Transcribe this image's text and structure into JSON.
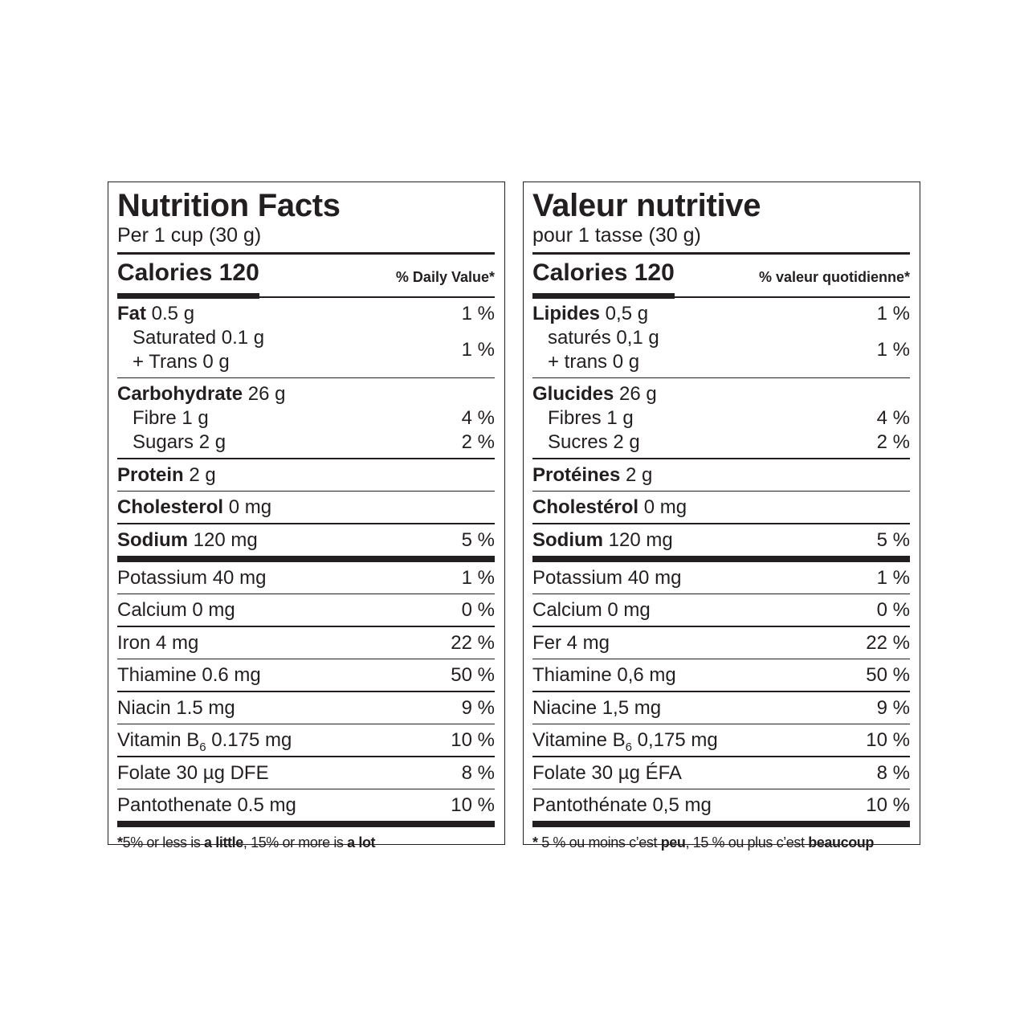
{
  "labels": [
    {
      "lang": "en",
      "title": "Nutrition Facts",
      "serving": "Per 1 cup (30 g)",
      "calories": "Calories 120",
      "dv_header": "% Daily Value*",
      "sections": [
        {
          "items": [
            {
              "name": "Fat",
              "amount": " 0.5 g",
              "dv": "1 %"
            },
            {
              "indent": true,
              "lines": [
                "Saturated 0.1 g",
                "+ Trans 0 g"
              ],
              "dv": "1 %"
            }
          ]
        },
        {
          "items": [
            {
              "name": "Carbohydrate",
              "amount": " 26 g",
              "dv": ""
            },
            {
              "indent": true,
              "plain": "Fibre 1 g",
              "dv": "4 %"
            },
            {
              "indent": true,
              "plain": "Sugars 2 g",
              "dv": "2 %"
            }
          ]
        },
        {
          "items": [
            {
              "name": "Protein",
              "amount": " 2 g",
              "dv": ""
            }
          ]
        },
        {
          "items": [
            {
              "name": "Cholesterol",
              "amount": " 0 mg",
              "dv": ""
            }
          ]
        },
        {
          "items": [
            {
              "name": "Sodium",
              "amount": " 120 mg",
              "dv": "5 %"
            }
          ],
          "after": "thick"
        },
        {
          "items": [
            {
              "plain": "Potassium 40 mg",
              "dv": "1 %"
            }
          ]
        },
        {
          "items": [
            {
              "plain": "Calcium 0 mg",
              "dv": "0 %"
            }
          ]
        },
        {
          "items": [
            {
              "plain": "Iron 4 mg",
              "dv": "22 %"
            }
          ]
        },
        {
          "items": [
            {
              "plain": "Thiamine 0.6 mg",
              "dv": "50 %"
            }
          ]
        },
        {
          "items": [
            {
              "plain": "Niacin 1.5 mg",
              "dv": "9 %"
            }
          ]
        },
        {
          "items": [
            {
              "plain": "Vitamin B",
              "sub": "6",
              "rest": " 0.175 mg",
              "dv": "10 %"
            }
          ]
        },
        {
          "items": [
            {
              "plain": "Folate 30 µg DFE",
              "dv": "8 %"
            }
          ]
        },
        {
          "items": [
            {
              "plain": "Pantothenate 0.5 mg",
              "dv": "10 %"
            }
          ],
          "after": "thick"
        }
      ],
      "footnote": [
        {
          "t": "*",
          "b": true
        },
        {
          "t": "5% or less is ",
          "b": false
        },
        {
          "t": "a little",
          "b": true
        },
        {
          "t": ", 15% or more is ",
          "b": false
        },
        {
          "t": "a lot",
          "b": true
        }
      ]
    },
    {
      "lang": "fr",
      "title": "Valeur nutritive",
      "serving": "pour 1 tasse (30 g)",
      "calories": "Calories 120",
      "dv_header": "% valeur quotidienne*",
      "sections": [
        {
          "items": [
            {
              "name": "Lipides",
              "amount": " 0,5 g",
              "dv": "1 %"
            },
            {
              "indent": true,
              "lines": [
                "saturés 0,1 g",
                "+ trans 0 g"
              ],
              "dv": "1 %"
            }
          ]
        },
        {
          "items": [
            {
              "name": "Glucides",
              "amount": " 26 g",
              "dv": ""
            },
            {
              "indent": true,
              "plain": "Fibres 1 g",
              "dv": "4 %"
            },
            {
              "indent": true,
              "plain": "Sucres 2 g",
              "dv": "2 %"
            }
          ]
        },
        {
          "items": [
            {
              "name": "Protéines",
              "amount": " 2 g",
              "dv": ""
            }
          ]
        },
        {
          "items": [
            {
              "name": "Cholestérol",
              "amount": " 0 mg",
              "dv": ""
            }
          ]
        },
        {
          "items": [
            {
              "name": "Sodium",
              "amount": " 120 mg",
              "dv": "5 %"
            }
          ],
          "after": "thick"
        },
        {
          "items": [
            {
              "plain": "Potassium 40 mg",
              "dv": "1 %"
            }
          ]
        },
        {
          "items": [
            {
              "plain": "Calcium 0 mg",
              "dv": "0 %"
            }
          ]
        },
        {
          "items": [
            {
              "plain": "Fer 4 mg",
              "dv": "22 %"
            }
          ]
        },
        {
          "items": [
            {
              "plain": "Thiamine 0,6 mg",
              "dv": "50 %"
            }
          ]
        },
        {
          "items": [
            {
              "plain": "Niacine 1,5 mg",
              "dv": "9 %"
            }
          ]
        },
        {
          "items": [
            {
              "plain": "Vitamine B",
              "sub": "6",
              "rest": " 0,175 mg",
              "dv": "10 %"
            }
          ]
        },
        {
          "items": [
            {
              "plain": "Folate 30 µg ÉFA",
              "dv": "8 %"
            }
          ]
        },
        {
          "items": [
            {
              "plain": "Pantothénate 0,5 mg",
              "dv": "10 %"
            }
          ],
          "after": "thick"
        }
      ],
      "footnote": [
        {
          "t": "* ",
          "b": true
        },
        {
          "t": "5 % ou moins c’est ",
          "b": false
        },
        {
          "t": "peu",
          "b": true
        },
        {
          "t": ", 15 % ou plus c’est ",
          "b": false
        },
        {
          "t": "beaucoup",
          "b": true
        }
      ]
    }
  ]
}
